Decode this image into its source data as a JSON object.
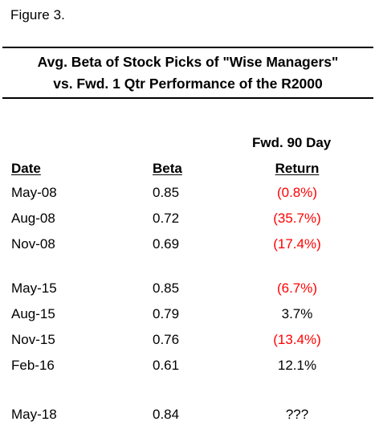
{
  "figure_label": "Figure 3.",
  "chart_data": {
    "type": "table",
    "title_line1": "Avg. Beta of Stock Picks of \"Wise Managers\"",
    "title_line2": "vs. Fwd. 1 Qtr Performance of the R2000",
    "columns": {
      "date": "Date",
      "beta": "Beta",
      "return_pre": "Fwd. 90 Day",
      "return": "Return"
    },
    "negative_color": "#ff0000",
    "groups": [
      [
        {
          "date": "May-08",
          "beta": "0.85",
          "ret": "(0.8%)",
          "neg": true
        },
        {
          "date": "Aug-08",
          "beta": "0.72",
          "ret": "(35.7%)",
          "neg": true
        },
        {
          "date": "Nov-08",
          "beta": "0.69",
          "ret": "(17.4%)",
          "neg": true
        }
      ],
      [
        {
          "date": "May-15",
          "beta": "0.85",
          "ret": "(6.7%)",
          "neg": true
        },
        {
          "date": "Aug-15",
          "beta": "0.79",
          "ret": "3.7%",
          "neg": false
        },
        {
          "date": "Nov-15",
          "beta": "0.76",
          "ret": "(13.4%)",
          "neg": true
        },
        {
          "date": "Feb-16",
          "beta": "0.61",
          "ret": "12.1%",
          "neg": false
        }
      ],
      [
        {
          "date": "May-18",
          "beta": "0.84",
          "ret": "???",
          "neg": false
        }
      ]
    ]
  }
}
